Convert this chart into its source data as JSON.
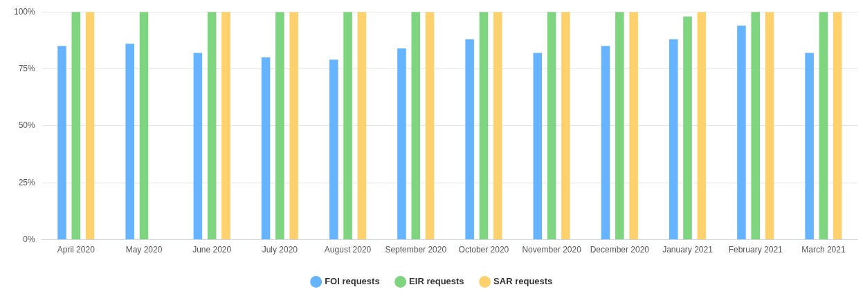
{
  "chart_data": {
    "type": "bar",
    "categories": [
      "April 2020",
      "May 2020",
      "June 2020",
      "July 2020",
      "August 2020",
      "September 2020",
      "October 2020",
      "November 2020",
      "December 2020",
      "January 2021",
      "February 2021",
      "March 2021"
    ],
    "series": [
      {
        "name": "FOI requests",
        "color": "#66b3ff",
        "values": [
          85,
          86,
          82,
          80,
          79,
          84,
          88,
          82,
          85,
          88,
          94,
          82
        ]
      },
      {
        "name": "EIR requests",
        "color": "#7fd47f",
        "values": [
          100,
          100,
          100,
          100,
          100,
          100,
          100,
          100,
          100,
          98,
          100,
          100
        ]
      },
      {
        "name": "SAR requests",
        "color": "#fdd26e",
        "values": [
          100,
          null,
          100,
          100,
          100,
          100,
          100,
          100,
          100,
          100,
          100,
          100
        ]
      }
    ],
    "ylim": [
      0,
      100
    ],
    "yticks": [
      {
        "value": 0,
        "label": "0%"
      },
      {
        "value": 25,
        "label": "25%"
      },
      {
        "value": 50,
        "label": "50%"
      },
      {
        "value": 75,
        "label": "75%"
      },
      {
        "value": 100,
        "label": "100%"
      }
    ],
    "grid": "y",
    "legend": "bottom",
    "marker": "circle"
  }
}
